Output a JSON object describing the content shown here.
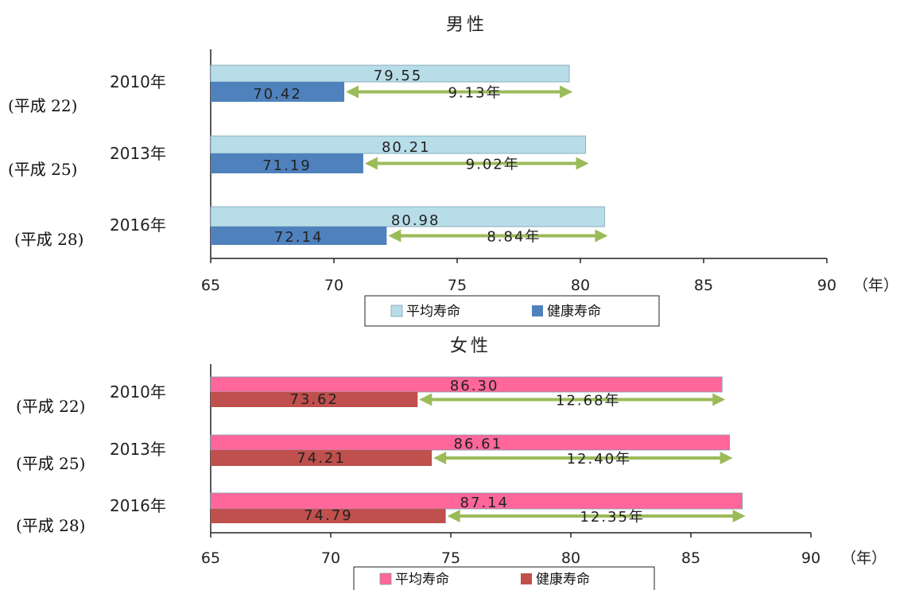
{
  "chart_data": [
    {
      "type": "bar",
      "title": "男性",
      "categories": [
        "2010年",
        "2013年",
        "2016年"
      ],
      "category_sublabels": [
        "(平成 22)",
        "(平成 25)",
        "(平成 28)"
      ],
      "series": [
        {
          "name": "平均寿命",
          "values": [
            79.55,
            80.21,
            80.98
          ],
          "color": "#b7dde8"
        },
        {
          "name": "健康寿命",
          "values": [
            70.42,
            71.19,
            72.14
          ],
          "color": "#4f81bd"
        }
      ],
      "value_labels": {
        "平均寿命": [
          "79.55",
          "80.21",
          "80.98"
        ],
        "健康寿命": [
          "70.42",
          "71.19",
          "72.14"
        ]
      },
      "gaps": [
        9.13,
        9.02,
        8.84
      ],
      "gap_labels": [
        "9.13年",
        "9.02年",
        "8.84年"
      ],
      "xlim": [
        65,
        90
      ],
      "x_ticks": [
        "65",
        "70",
        "75",
        "80",
        "85",
        "90"
      ],
      "x_unit_label": "（年）",
      "orientation": "horizontal",
      "legend_position": "bottom",
      "grid": false
    },
    {
      "type": "bar",
      "title": "女性",
      "categories": [
        "2010年",
        "2013年",
        "2016年"
      ],
      "category_sublabels": [
        "(平成 22)",
        "(平成 25)",
        "(平成 28)"
      ],
      "series": [
        {
          "name": "平均寿命",
          "values": [
            86.3,
            86.61,
            87.14
          ],
          "color": "#ff6699"
        },
        {
          "name": "健康寿命",
          "values": [
            73.62,
            74.21,
            74.79
          ],
          "color": "#c0504d"
        }
      ],
      "value_labels": {
        "平均寿命": [
          "86.30",
          "86.61",
          "87.14"
        ],
        "健康寿命": [
          "73.62",
          "74.21",
          "74.79"
        ]
      },
      "gaps": [
        12.68,
        12.4,
        12.35
      ],
      "gap_labels": [
        "12.68年",
        "12.40年",
        "12.35年"
      ],
      "xlim": [
        65,
        90
      ],
      "x_ticks": [
        "65",
        "70",
        "75",
        "80",
        "85",
        "90"
      ],
      "x_unit_label": "（年）",
      "orientation": "horizontal",
      "legend_position": "bottom",
      "grid": false
    }
  ],
  "arrow_color": "#9bbb59"
}
